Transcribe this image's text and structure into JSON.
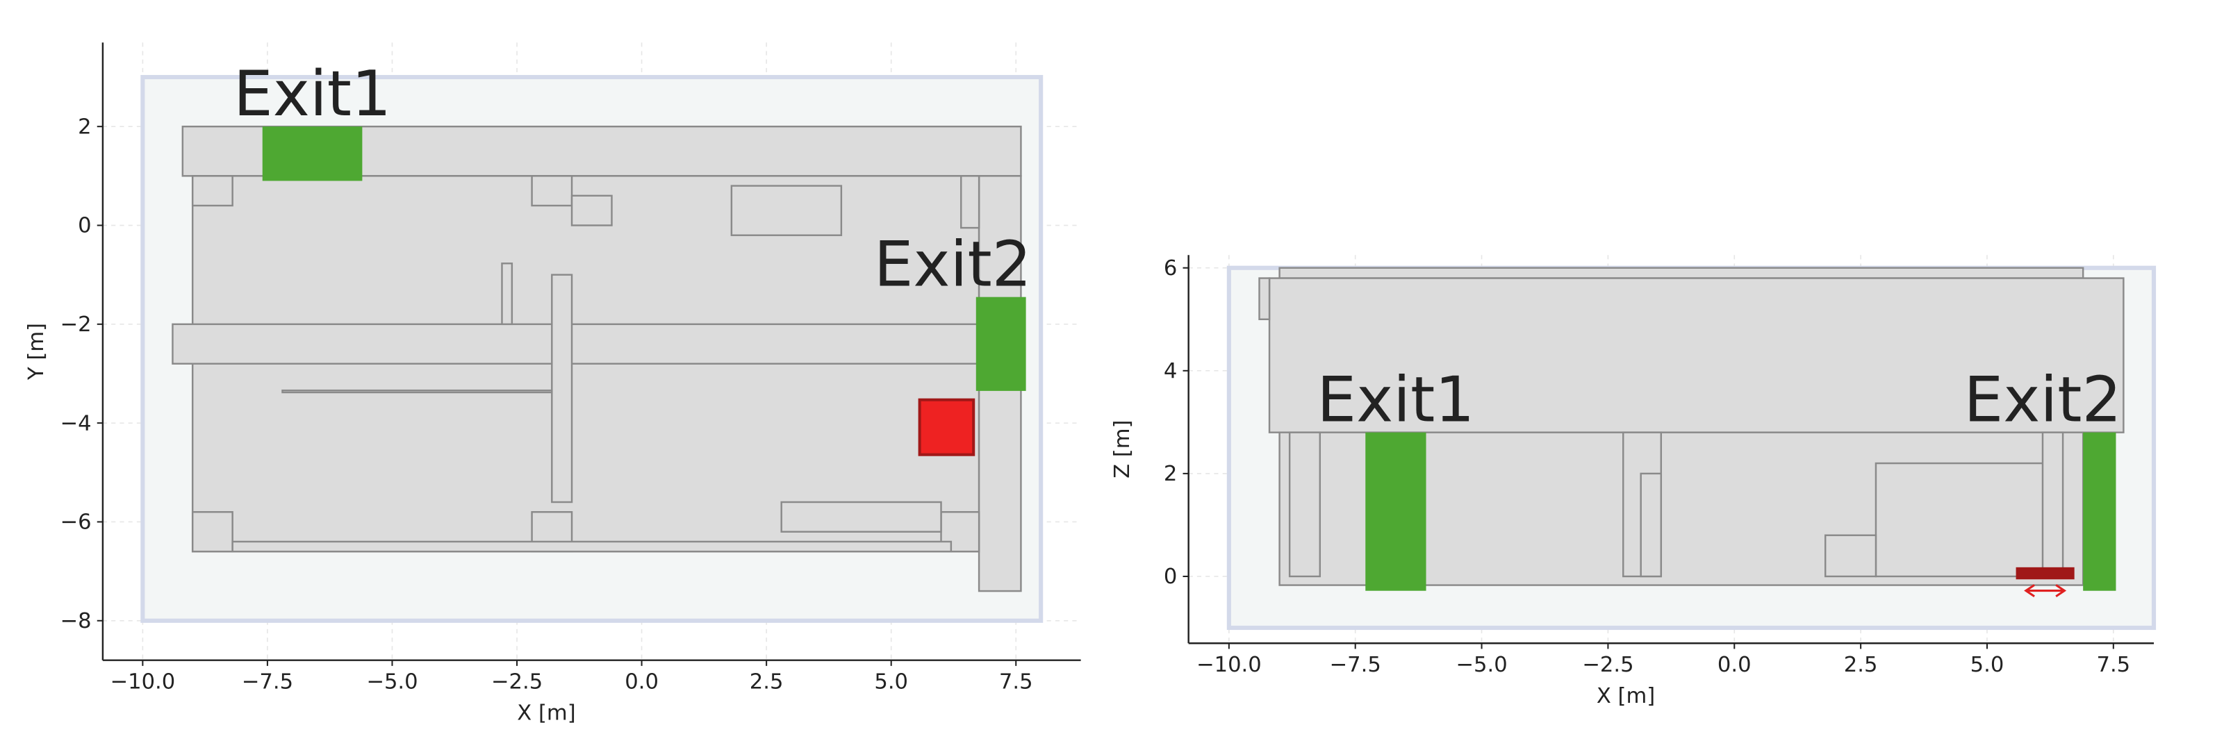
{
  "chart_data": [
    {
      "type": "plan",
      "xlabel": "X [m]",
      "ylabel": "Y [m]",
      "xlim": [
        -10.8,
        8.8
      ],
      "ylim": [
        -8.8,
        3.7
      ],
      "xticks": [
        {
          "value": -10,
          "label": "−10.0"
        },
        {
          "value": -7.5,
          "label": "−7.5"
        },
        {
          "value": -5,
          "label": "−5.0"
        },
        {
          "value": -2.5,
          "label": "−2.5"
        },
        {
          "value": 0,
          "label": "0.0"
        },
        {
          "value": 2.5,
          "label": "2.5"
        },
        {
          "value": 5,
          "label": "5.0"
        },
        {
          "value": 7.5,
          "label": "7.5"
        }
      ],
      "yticks": [
        {
          "value": -8,
          "label": "−8"
        },
        {
          "value": -6,
          "label": "−6"
        },
        {
          "value": -4,
          "label": "−4"
        },
        {
          "value": -2,
          "label": "−2"
        },
        0,
        2
      ],
      "grid": true,
      "zone": [
        -10,
        -8,
        8,
        3
      ],
      "zone_color": "#f3f6f6",
      "wall_color": "#dcdcdc",
      "walls": [
        [
          -9.2,
          1.0,
          7.6,
          2.0
        ],
        [
          -9.0,
          -6.6,
          6.76,
          1.0
        ],
        [
          6.76,
          -7.4,
          7.6,
          1.0
        ],
        [
          -9.4,
          -2.8,
          7.6,
          -2.0
        ],
        [
          -1.8,
          -5.6,
          -1.4,
          -1.0
        ],
        [
          -2.8,
          -2.0,
          -2.6,
          -0.77
        ],
        [
          1.8,
          -0.2,
          4.0,
          0.8
        ],
        [
          -9.0,
          0.4,
          -8.2,
          1.0
        ],
        [
          -2.2,
          0.4,
          -1.4,
          1.0
        ],
        [
          -1.4,
          0.0,
          -0.6,
          0.6
        ],
        [
          -9.0,
          -6.6,
          -8.2,
          -5.8
        ],
        [
          -2.2,
          -6.6,
          -1.4,
          -5.8
        ],
        [
          6.0,
          -6.6,
          6.76,
          -5.8
        ],
        [
          -8.2,
          -6.6,
          6.2,
          -6.4
        ],
        [
          2.8,
          -6.2,
          6.0,
          -5.6
        ],
        [
          -7.2,
          -3.38,
          -1.8,
          -3.34
        ],
        [
          6.4,
          -0.05,
          6.76,
          1.0
        ]
      ],
      "exit_color": "#4ea832",
      "exits": [
        {
          "label": "Exit1",
          "rect": [
            -7.6,
            0.9,
            -5.6,
            2.0
          ]
        },
        {
          "label": "Exit2",
          "rect": [
            6.7,
            -3.35,
            7.7,
            -1.45
          ]
        }
      ],
      "source_color": "#ee2222",
      "source": [
        5.57,
        -4.64,
        6.65,
        -3.53
      ]
    },
    {
      "type": "plan",
      "xlabel": "X [m]",
      "ylabel": "Z [m]",
      "xlim": [
        -10.8,
        8.3
      ],
      "ylim": [
        -1.3,
        6.25
      ],
      "xticks": [
        {
          "value": -10,
          "label": "−10.0"
        },
        {
          "value": -7.5,
          "label": "−7.5"
        },
        {
          "value": -5,
          "label": "−5.0"
        },
        {
          "value": -2.5,
          "label": "−2.5"
        },
        {
          "value": 0,
          "label": "0.0"
        },
        {
          "value": 2.5,
          "label": "2.5"
        },
        {
          "value": 5,
          "label": "5.0"
        },
        {
          "value": 7.5,
          "label": "7.5"
        }
      ],
      "yticks": [
        0,
        2,
        4,
        6
      ],
      "grid": true,
      "zone": [
        -10,
        -1.0,
        8.3,
        6
      ],
      "zone_color": "#f3f6f6",
      "wall_color": "#dcdcdc",
      "walls": [
        [
          -9.0,
          5.8,
          6.9,
          6.0
        ],
        [
          -9.2,
          2.8,
          7.7,
          5.8
        ],
        [
          -9.4,
          5.0,
          -9.2,
          5.8
        ],
        [
          -9.0,
          -0.17,
          6.9,
          2.8
        ],
        [
          -8.8,
          0,
          -8.2,
          2.8
        ],
        [
          -2.2,
          0,
          -1.45,
          2.8
        ],
        [
          -1.85,
          0,
          -1.45,
          2.0
        ],
        [
          2.8,
          0,
          6.3,
          2.2
        ],
        [
          1.8,
          0,
          2.8,
          0.8
        ],
        [
          6.1,
          0,
          6.5,
          2.8
        ]
      ],
      "exit_color": "#4ea832",
      "exits": [
        {
          "label": "Exit1",
          "rect": [
            -7.3,
            -0.28,
            -6.1,
            2.8
          ]
        },
        {
          "label": "Exit2",
          "rect": [
            6.9,
            -0.28,
            7.55,
            2.8
          ]
        }
      ],
      "source_color": "#a01818",
      "source": [
        5.6,
        -0.03,
        6.7,
        0.15
      ]
    }
  ]
}
